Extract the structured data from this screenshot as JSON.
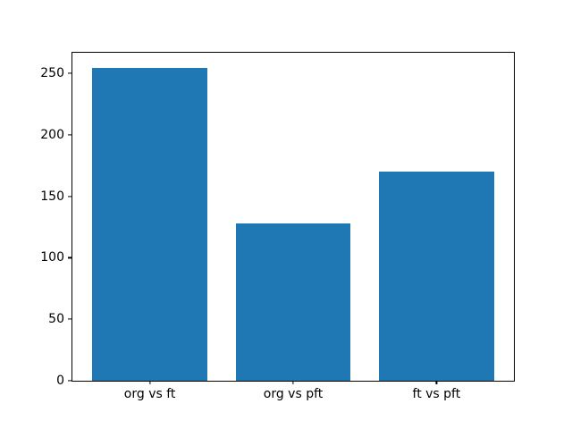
{
  "chart_data": {
    "type": "bar",
    "title": "",
    "xlabel": "",
    "ylabel": "",
    "categories": [
      "org vs ft",
      "org vs pft",
      "ft vs pft"
    ],
    "values": [
      254,
      128,
      170
    ],
    "yticks": [
      0,
      50,
      100,
      150,
      200,
      250
    ],
    "ylim": [
      0,
      266.7
    ],
    "xlim": [
      -0.54,
      2.54
    ],
    "bar_width": 0.8,
    "bar_color": "#1f77b4",
    "background_color": "#ffffff",
    "spine_color": "#000000",
    "grid": "off",
    "legend": "none"
  }
}
